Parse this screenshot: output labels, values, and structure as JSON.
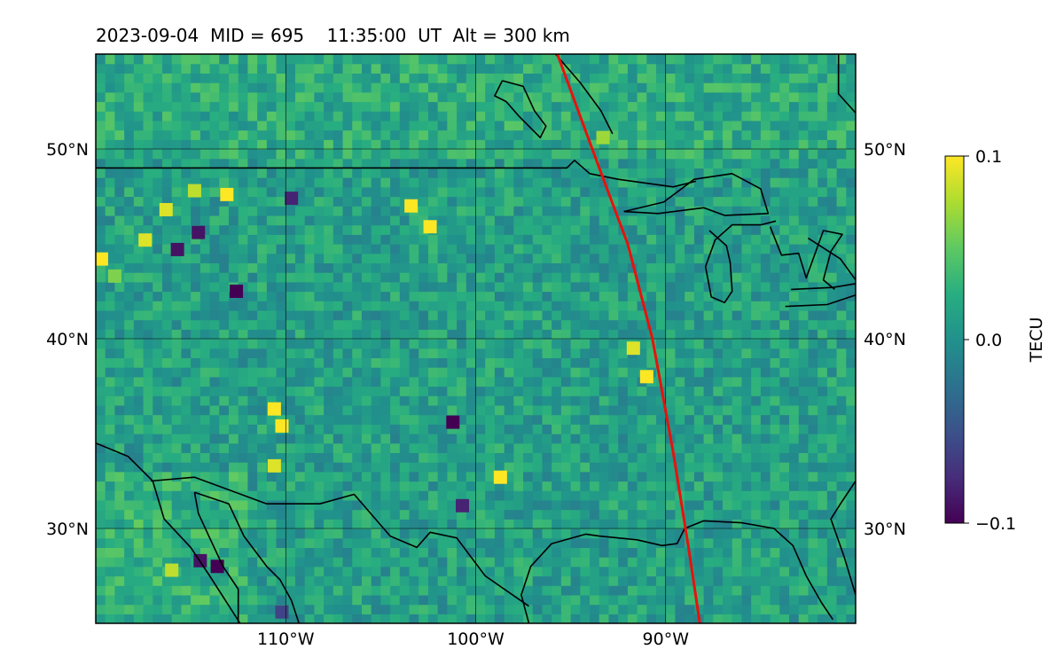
{
  "title": "2023-09-04  MID = 695    11:35:00  UT  Alt = 300 km",
  "chart_data": {
    "type": "heatmap",
    "map_projection": "PlateCarree",
    "xlim": [
      -120,
      -80
    ],
    "ylim": [
      25,
      55
    ],
    "lat_ticks": [
      {
        "value": 30,
        "label": "30°N"
      },
      {
        "value": 40,
        "label": "40°N"
      },
      {
        "value": 50,
        "label": "50°N"
      }
    ],
    "lon_ticks": [
      {
        "value": -110,
        "label": "110°W"
      },
      {
        "value": -100,
        "label": "100°W"
      },
      {
        "value": -90,
        "label": "90°W"
      }
    ],
    "grid": true,
    "colormap": "viridis",
    "colorbar": {
      "label": "TECU",
      "vmin": -0.1,
      "vmax": 0.1,
      "ticks": [
        {
          "value": 0.1,
          "label": "0.1"
        },
        {
          "value": 0.0,
          "label": "0.0"
        },
        {
          "value": -0.1,
          "label": "−0.1"
        }
      ]
    },
    "terminator_line": {
      "color": "#e8120c",
      "points": [
        [
          -95.7,
          55
        ],
        [
          -93.5,
          49
        ],
        [
          -92.0,
          45
        ],
        [
          -90.7,
          40
        ],
        [
          -89.6,
          34
        ],
        [
          -88.8,
          29
        ],
        [
          -88.2,
          25
        ]
      ]
    },
    "enhancements": [
      {
        "lon": -91,
        "lat": 38,
        "value": 0.1
      },
      {
        "lon": -91.7,
        "lat": 39.5,
        "value": 0.09
      },
      {
        "lon": -110.6,
        "lat": 33.3,
        "value": 0.09
      },
      {
        "lon": -102.4,
        "lat": 45.9,
        "value": 0.1
      },
      {
        "lon": -116,
        "lat": 27.8,
        "value": 0.08
      },
      {
        "lon": -93.3,
        "lat": 50.6,
        "value": 0.07
      },
      {
        "lon": -119.7,
        "lat": 44.2,
        "value": 0.1
      },
      {
        "lon": -110.2,
        "lat": 35.4,
        "value": 0.1
      },
      {
        "lon": -110.6,
        "lat": 36.3,
        "value": 0.1
      },
      {
        "lon": -98.7,
        "lat": 32.7,
        "value": 0.1
      },
      {
        "lon": -113.1,
        "lat": 47.6,
        "value": 0.1
      },
      {
        "lon": -117.4,
        "lat": 45.2,
        "value": 0.09
      },
      {
        "lon": -103.4,
        "lat": 47.0,
        "value": 0.1
      },
      {
        "lon": -116.3,
        "lat": 46.8,
        "value": 0.09
      },
      {
        "lon": -119.0,
        "lat": 43.3,
        "value": 0.06
      },
      {
        "lon": -114.8,
        "lat": 47.8,
        "value": 0.08
      }
    ],
    "depletions": [
      {
        "lon": -113.6,
        "lat": 28.0,
        "value": -0.1
      },
      {
        "lon": -114.5,
        "lat": 28.3,
        "value": -0.09
      },
      {
        "lon": -114.6,
        "lat": 45.6,
        "value": -0.09
      },
      {
        "lon": -112.6,
        "lat": 42.5,
        "value": -0.1
      },
      {
        "lon": -101.2,
        "lat": 35.6,
        "value": -0.1
      },
      {
        "lon": -100.7,
        "lat": 31.2,
        "value": -0.08
      },
      {
        "lon": -115.7,
        "lat": 44.7,
        "value": -0.09
      },
      {
        "lon": -110.2,
        "lat": 25.6,
        "value": -0.06
      },
      {
        "lon": -109.7,
        "lat": 47.4,
        "value": -0.08
      }
    ],
    "coastlines": [
      [
        [
          -120,
          34.5
        ],
        [
          -118.3,
          33.8
        ],
        [
          -117.0,
          32.5
        ],
        [
          -116.4,
          30.5
        ],
        [
          -115.0,
          29.0
        ],
        [
          -114.0,
          27.5
        ],
        [
          -112.4,
          25.0
        ]
      ],
      [
        [
          -114.8,
          31.9
        ],
        [
          -113.0,
          31.3
        ],
        [
          -112.2,
          29.6
        ],
        [
          -111.0,
          28.0
        ],
        [
          -110.3,
          27.3
        ],
        [
          -109.7,
          26.2
        ],
        [
          -109.3,
          25.0
        ]
      ],
      [
        [
          -114.8,
          31.9
        ],
        [
          -114.6,
          30.8
        ],
        [
          -114.0,
          29.5
        ],
        [
          -113.3,
          28.0
        ],
        [
          -112.5,
          26.8
        ],
        [
          -112.5,
          25.0
        ]
      ],
      [
        [
          -97.2,
          25.0
        ],
        [
          -97.6,
          26.5
        ],
        [
          -97.1,
          28.0
        ],
        [
          -96.0,
          29.2
        ],
        [
          -94.2,
          29.7
        ],
        [
          -93.5,
          29.6
        ],
        [
          -91.5,
          29.4
        ],
        [
          -90.2,
          29.1
        ],
        [
          -89.4,
          29.2
        ],
        [
          -89.0,
          30.0
        ],
        [
          -88.0,
          30.4
        ],
        [
          -86.0,
          30.3
        ],
        [
          -84.3,
          30.0
        ],
        [
          -83.3,
          29.1
        ],
        [
          -82.6,
          27.5
        ],
        [
          -81.8,
          26.1
        ],
        [
          -81.2,
          25.2
        ]
      ],
      [
        [
          -80,
          26.5
        ],
        [
          -80.6,
          28.5
        ],
        [
          -81.3,
          30.5
        ],
        [
          -80.8,
          31.3
        ],
        [
          -80,
          32.5
        ]
      ],
      [
        [
          -95.8,
          55
        ],
        [
          -94.5,
          53.5
        ],
        [
          -93.4,
          52.0
        ],
        [
          -92.8,
          50.8
        ]
      ],
      [
        [
          -98.6,
          53.6
        ],
        [
          -97.5,
          53.3
        ],
        [
          -96.9,
          52.0
        ],
        [
          -96.3,
          51.2
        ],
        [
          -96.6,
          50.6
        ],
        [
          -97.7,
          51.7
        ],
        [
          -98.4,
          52.5
        ],
        [
          -99.0,
          52.8
        ],
        [
          -98.6,
          53.6
        ]
      ],
      [
        [
          -80.9,
          55
        ],
        [
          -80.9,
          52.9
        ],
        [
          -80.0,
          51.9
        ]
      ],
      [
        [
          -92.2,
          46.7
        ],
        [
          -90.1,
          47.2
        ],
        [
          -88.5,
          48.4
        ],
        [
          -86.5,
          48.7
        ],
        [
          -85.0,
          47.9
        ],
        [
          -84.6,
          46.6
        ],
        [
          -86.9,
          46.5
        ],
        [
          -88.0,
          46.9
        ],
        [
          -90.4,
          46.6
        ],
        [
          -92.2,
          46.7
        ]
      ],
      [
        [
          -87.7,
          45.7
        ],
        [
          -86.8,
          44.9
        ],
        [
          -86.6,
          44.0
        ],
        [
          -86.5,
          42.5
        ],
        [
          -86.9,
          41.9
        ],
        [
          -87.6,
          42.2
        ],
        [
          -87.9,
          43.8
        ],
        [
          -87.4,
          45.2
        ],
        [
          -86.5,
          46.0
        ],
        [
          -85.0,
          46.0
        ],
        [
          -84.2,
          46.2
        ]
      ],
      [
        [
          -84.5,
          45.9
        ],
        [
          -83.9,
          44.4
        ],
        [
          -83.0,
          44.5
        ],
        [
          -82.6,
          43.2
        ],
        [
          -81.7,
          45.7
        ],
        [
          -80.7,
          45.5
        ],
        [
          -81.3,
          44.6
        ],
        [
          -81.7,
          43.1
        ],
        [
          -81.1,
          42.6
        ]
      ],
      [
        [
          -83.7,
          41.7
        ],
        [
          -81.5,
          41.8
        ],
        [
          -80.0,
          42.3
        ]
      ],
      [
        [
          -83.4,
          42.6
        ],
        [
          -81.2,
          42.7
        ],
        [
          -80.0,
          42.9
        ]
      ]
    ],
    "borders": [
      [
        [
          -120,
          49.0
        ],
        [
          -95.2,
          49.0
        ],
        [
          -94.8,
          49.4
        ],
        [
          -94.0,
          48.7
        ],
        [
          -92.5,
          48.4
        ],
        [
          -89.6,
          48.0
        ],
        [
          -88.4,
          48.3
        ]
      ],
      [
        [
          -117.1,
          32.5
        ],
        [
          -114.8,
          32.7
        ],
        [
          -111.0,
          31.3
        ],
        [
          -108.2,
          31.3
        ],
        [
          -106.4,
          31.8
        ],
        [
          -104.5,
          29.6
        ],
        [
          -103.1,
          29.0
        ],
        [
          -102.4,
          29.8
        ],
        [
          -101.0,
          29.5
        ],
        [
          -99.5,
          27.5
        ],
        [
          -97.2,
          25.9
        ]
      ],
      [
        [
          -80,
          43.1
        ],
        [
          -80.8,
          44.2
        ],
        [
          -82.5,
          45.3
        ]
      ]
    ]
  }
}
